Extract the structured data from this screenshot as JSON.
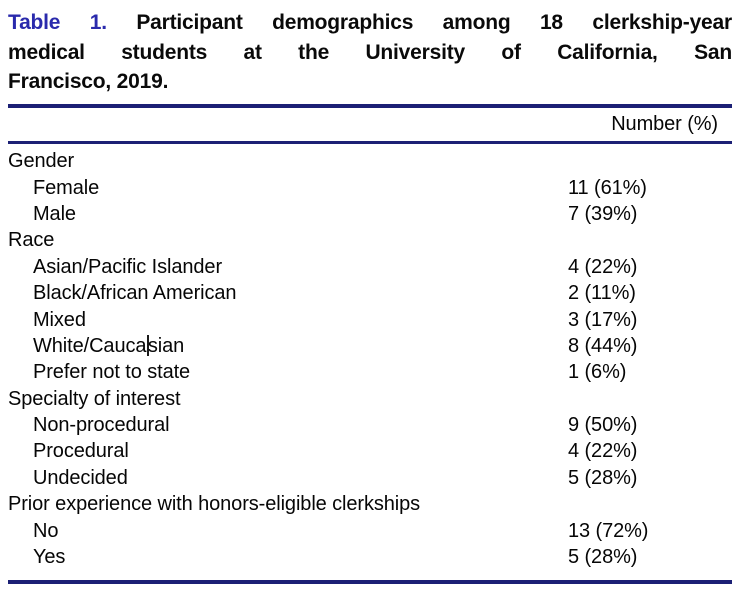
{
  "caption": {
    "label": "Table 1.",
    "line1": "Participant demographics among 18 clerkship-year",
    "line2": "medical students at the University of California, San",
    "line3": "Francisco, 2019."
  },
  "table": {
    "header": {
      "value_col": "Number (%)"
    },
    "rows": [
      {
        "label": "Gender",
        "value": "",
        "indent": false
      },
      {
        "label": "Female",
        "value": "11 (61%)",
        "indent": true
      },
      {
        "label": "Male",
        "value": "7 (39%)",
        "indent": true
      },
      {
        "label": "Race",
        "value": "",
        "indent": false
      },
      {
        "label": "Asian/Pacific Islander",
        "value": "4 (22%)",
        "indent": true
      },
      {
        "label": "Black/African American",
        "value": "2 (11%)",
        "indent": true
      },
      {
        "label": "Mixed",
        "value": "3 (17%)",
        "indent": true
      },
      {
        "label": "White/Caucasian",
        "value": "8 (44%)",
        "indent": true,
        "caret_after": "White/Cauca"
      },
      {
        "label": "Prefer not to state",
        "value": "1 (6%)",
        "indent": true
      },
      {
        "label": "Specialty of interest",
        "value": "",
        "indent": false
      },
      {
        "label": "Non-procedural",
        "value": "9 (50%)",
        "indent": true
      },
      {
        "label": "Procedural",
        "value": "4 (22%)",
        "indent": true
      },
      {
        "label": "Undecided",
        "value": "5 (28%)",
        "indent": true
      },
      {
        "label": "Prior experience with honors-eligible clerkships",
        "value": "",
        "indent": false
      },
      {
        "label": "No",
        "value": "13 (72%)",
        "indent": true
      },
      {
        "label": "Yes",
        "value": "5 (28%)",
        "indent": true
      }
    ]
  },
  "colors": {
    "rule_navy": "#1c2075",
    "caption_blue": "#2a2aac",
    "text_black": "#060606"
  }
}
